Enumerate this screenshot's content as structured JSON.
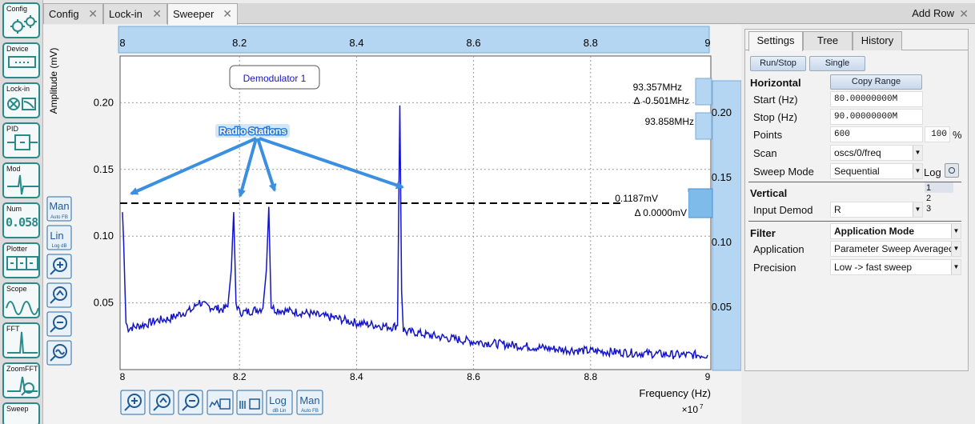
{
  "sidebar": {
    "items": [
      {
        "label": "Config",
        "icon": "gears-icon"
      },
      {
        "label": "Device",
        "icon": "device-icon"
      },
      {
        "label": "Lock-in",
        "icon": "lockin-icon"
      },
      {
        "label": "PID",
        "icon": "pid-icon"
      },
      {
        "label": "Mod",
        "icon": "mod-icon"
      },
      {
        "label": "Num",
        "icon": "num-icon",
        "value": "0.058"
      },
      {
        "label": "Plotter",
        "icon": "plotter-icon"
      },
      {
        "label": "Scope",
        "icon": "scope-icon"
      },
      {
        "label": "FFT",
        "icon": "fft-icon"
      },
      {
        "label": "ZoomFFT",
        "icon": "zoomfft-icon"
      },
      {
        "label": "Sweep",
        "icon": "sweep-icon"
      }
    ]
  },
  "tabs": [
    {
      "label": "Config"
    },
    {
      "label": "Lock-in"
    },
    {
      "label": "Sweeper"
    }
  ],
  "add_row": "Add Row",
  "plot": {
    "ylabel": "Amplitude (mV)",
    "xlabel": "Frequency (Hz)",
    "x_multiplier": "×10",
    "x_multiplier_exp": "7",
    "legend": "Demodulator 1",
    "annotation": "Radio Stations",
    "left_controls": {
      "man": "Man",
      "man_sub": "Auto   FB",
      "lin": "Lin",
      "lin_sub": "Log   dB"
    },
    "bottom_controls": {
      "log": "Log",
      "log_sub": "dB   Lin",
      "man": "Man",
      "man_sub": "Auto   FB"
    },
    "cursor_v1_label": "93.357MHz",
    "cursor_v1_delta": "Δ -0.501MHz",
    "cursor_v2_label": "93.858MHz",
    "cursor_h_label": "0.1187mV",
    "cursor_h_delta": "Δ 0.0000mV",
    "right_axis_ticks": [
      "0.20",
      "0.15",
      "0.10",
      "0.05"
    ],
    "top_axis_ticks": [
      "8",
      "8.2",
      "8.4",
      "8.6",
      "8.8",
      "9"
    ],
    "accent": "#1414c8",
    "cursor_fill": "#a9cfee"
  },
  "chart_data": {
    "type": "line",
    "title": "",
    "legend": [
      "Demodulator 1"
    ],
    "xlabel": "Frequency (Hz)",
    "ylabel": "Amplitude (mV)",
    "x_scale_note": "×10^7",
    "xlim": [
      8.0,
      9.0
    ],
    "ylim": [
      0,
      0.235
    ],
    "xticks": [
      "8",
      "8.2",
      "8.4",
      "8.6",
      "8.8",
      "9"
    ],
    "yticks": [
      "0.05",
      "0.10",
      "0.15",
      "0.20"
    ],
    "grid": true,
    "series": [
      {
        "name": "Demodulator 1",
        "x": [
          8.0,
          8.002,
          8.006,
          8.01,
          8.02,
          8.04,
          8.06,
          8.08,
          8.1,
          8.12,
          8.13,
          8.14,
          8.15,
          8.16,
          8.17,
          8.18,
          8.186,
          8.19,
          8.194,
          8.2,
          8.21,
          8.22,
          8.23,
          8.24,
          8.246,
          8.25,
          8.254,
          8.26,
          8.28,
          8.3,
          8.32,
          8.34,
          8.36,
          8.38,
          8.4,
          8.42,
          8.44,
          8.46,
          8.47,
          8.474,
          8.477,
          8.48,
          8.486,
          8.5,
          8.52,
          8.55,
          8.6,
          8.65,
          8.7,
          8.75,
          8.8,
          8.85,
          8.9,
          8.95,
          9.0
        ],
        "y": [
          0.118,
          0.095,
          0.035,
          0.031,
          0.032,
          0.034,
          0.037,
          0.038,
          0.042,
          0.045,
          0.051,
          0.048,
          0.047,
          0.046,
          0.045,
          0.047,
          0.075,
          0.118,
          0.05,
          0.043,
          0.043,
          0.044,
          0.045,
          0.046,
          0.075,
          0.122,
          0.048,
          0.045,
          0.044,
          0.043,
          0.042,
          0.04,
          0.039,
          0.037,
          0.035,
          0.034,
          0.033,
          0.032,
          0.033,
          0.198,
          0.06,
          0.03,
          0.028,
          0.028,
          0.026,
          0.024,
          0.021,
          0.019,
          0.017,
          0.015,
          0.014,
          0.013,
          0.012,
          0.011,
          0.011
        ]
      }
    ]
  },
  "settings": {
    "tabs": [
      {
        "label": "Settings"
      },
      {
        "label": "Tree"
      },
      {
        "label": "History"
      }
    ],
    "run_stop": "Run/Stop",
    "single": "Single",
    "horizontal": "Horizontal",
    "copy_range": "Copy Range",
    "start_label": "Start (Hz)",
    "start_value": "80.00000000M",
    "stop_label": "Stop (Hz)",
    "stop_value": "90.00000000M",
    "points_label": "Points",
    "points_value": "600",
    "pct_value": "100",
    "pct_unit": "%",
    "scan_label": "Scan",
    "scan_value": "oscs/0/freq",
    "sweep_mode_label": "Sweep Mode",
    "sweep_mode_value": "Sequential",
    "log_label": "Log",
    "vertical": "Vertical",
    "input_demod_label": "Input Demod",
    "input_demod_value": "R",
    "demod_list": [
      "1",
      "2",
      "3"
    ],
    "filter": "Filter",
    "app_mode": "Application Mode",
    "application_label": "Application",
    "application_value": "Parameter Sweep Averaged",
    "precision_label": "Precision",
    "precision_value": "Low -> fast sweep"
  }
}
